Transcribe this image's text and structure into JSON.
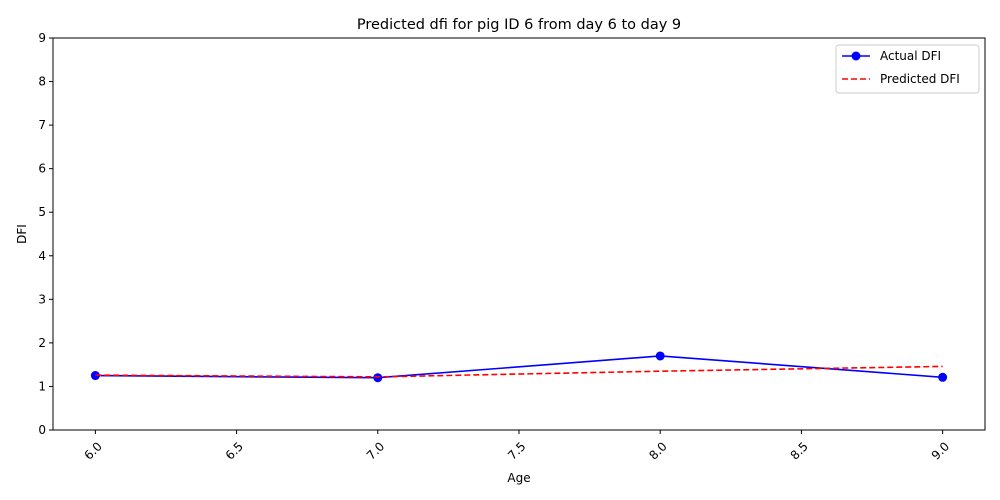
{
  "chart_data": {
    "type": "line",
    "title": "Predicted dfi for pig ID 6 from day 6 to day 9",
    "xlabel": "Age",
    "ylabel": "DFI",
    "xlim": [
      5.85,
      9.15
    ],
    "ylim": [
      0,
      9
    ],
    "xticks": [
      "6.0",
      "6.5",
      "7.0",
      "7.5",
      "8.0",
      "8.5",
      "9.0"
    ],
    "xtick_values": [
      6.0,
      6.5,
      7.0,
      7.5,
      8.0,
      8.5,
      9.0
    ],
    "yticks": [
      "0",
      "1",
      "2",
      "3",
      "4",
      "5",
      "6",
      "7",
      "8",
      "9"
    ],
    "ytick_values": [
      0,
      1,
      2,
      3,
      4,
      5,
      6,
      7,
      8,
      9
    ],
    "xtick_rotation": 45,
    "grid": false,
    "legend_position": "top-right",
    "series": [
      {
        "name": "Actual DFI",
        "x": [
          6,
          7,
          8,
          9
        ],
        "y": [
          1.25,
          1.2,
          1.7,
          1.21
        ],
        "color": "#0000ff",
        "style": "solid",
        "marker": "circle"
      },
      {
        "name": "Predicted DFI",
        "x": [
          6,
          7,
          8,
          9
        ],
        "y": [
          1.26,
          1.22,
          1.35,
          1.46
        ],
        "color": "#ff0000",
        "style": "dashed",
        "marker": "none"
      }
    ]
  }
}
